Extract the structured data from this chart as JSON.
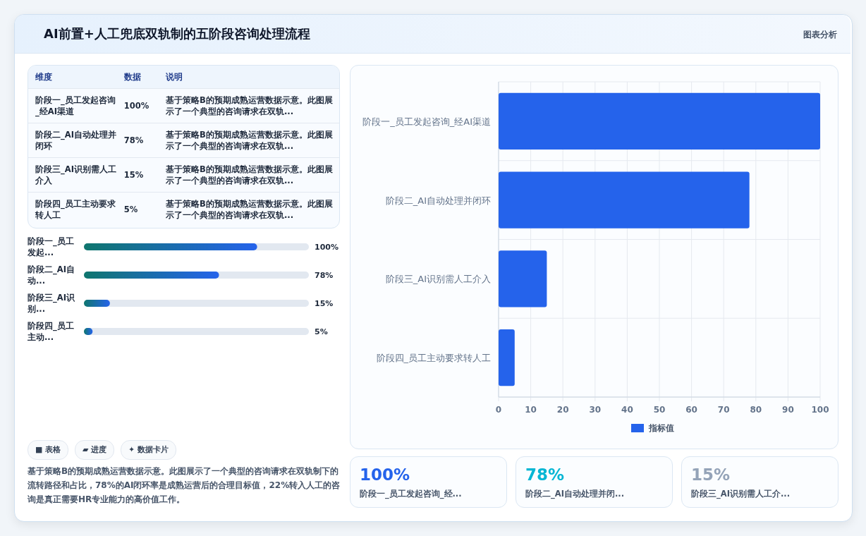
{
  "chart_data": [
    {
      "type": "other",
      "title": "AI前置+人工兜底双轨制的五阶段咨询处理流程",
      "subtitle": "图表分析",
      "categories": [
        "阶段一_员工发起咨询_经AI渠道",
        "阶段二_AI自动处理并闭环",
        "阶段三_AI识别需人工介入",
        "阶段四_员工主动要求转人工"
      ],
      "value_labels": [
        "100%",
        "78%",
        "15%",
        "5%"
      ],
      "annotations": [
        "维度",
        "数据",
        "说明",
        "基于策略B的预期成熟运营数据示意。此图展示了一个典型的咨询请求在双轨...",
        "基于策略B的预期成熟运营数据示意。此图展示了一个典型的咨询请求在双轨...",
        "基于策略B的预期成熟运营数据示意。此图展示了一个典型的咨询请求在双轨...",
        "基于策略B的预期成熟运营数据示意。此图展示了一个典型的咨询请求在双轨..."
      ]
    },
    {
      "type": "other",
      "categories": [
        "阶段一_员工发起...",
        "阶段二_AI自动...",
        "阶段三_AI识别...",
        "阶段四_员工主动..."
      ],
      "values": [
        100,
        78,
        15,
        5
      ],
      "value_labels": [
        "100%",
        "78%",
        "15%",
        "5%"
      ]
    },
    {
      "type": "other",
      "annotations": [
        "■ 表格",
        "▰ 进度",
        "✦ 数据卡片",
        "基于策略B的预期成熟运营数据示意。此图展示了一个典型的咨询请求在双轨制下的流转路径和占比，78%的AI闭环率是成熟运营后的合理目标值，22%转入人工的咨询是真正需要HR专业能力的高价值工作。"
      ]
    },
    {
      "type": "bar",
      "orientation": "horizontal",
      "grid": true,
      "legend": "bottom",
      "categories": [
        "阶段一_员工发起咨询_经AI渠道",
        "阶段二_AI自动处理并闭环",
        "阶段三_AI识别需人工介入",
        "阶段四_员工主动要求转人工"
      ],
      "series": [
        {
          "name": "指标值",
          "color": "#2563eb",
          "values": [
            100,
            78,
            15,
            5
          ]
        }
      ],
      "xlim": [
        0,
        100
      ],
      "xticks": [
        0,
        10,
        20,
        30,
        40,
        50,
        60,
        70,
        80,
        90,
        100
      ]
    },
    {
      "type": "other",
      "categories": [
        "阶段一_员工发起咨询_经...",
        "阶段二_AI自动处理并闭...",
        "阶段三_AI识别需人工介..."
      ],
      "value_labels": [
        "100%",
        "78%",
        "15%"
      ]
    }
  ]
}
